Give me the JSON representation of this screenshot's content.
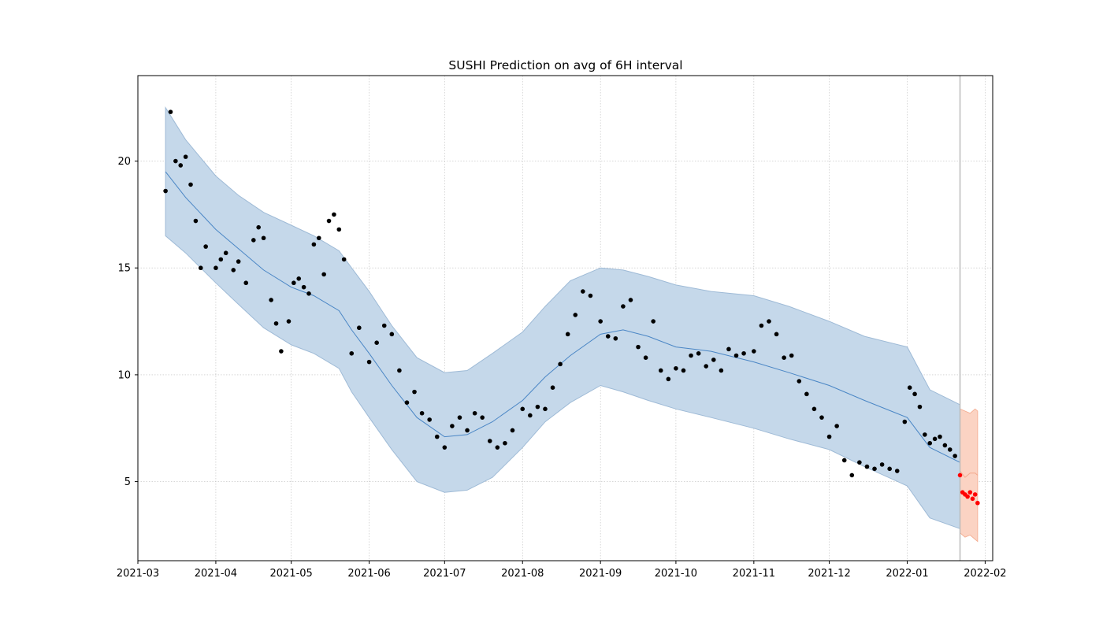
{
  "chart_data": {
    "type": "line",
    "title": "SUSHI Prediction on avg of 6H interval",
    "xlabel": "",
    "ylabel": "",
    "x_range": [
      "2021-03-01",
      "2022-02-04"
    ],
    "ylim": [
      1.3,
      24.0
    ],
    "grid": true,
    "legend": "none",
    "x_ticks": [
      "2021-03",
      "2021-04",
      "2021-05",
      "2021-06",
      "2021-07",
      "2021-08",
      "2021-09",
      "2021-10",
      "2021-11",
      "2021-12",
      "2022-01",
      "2022-02"
    ],
    "x_tick_dates": [
      "2021-03-01",
      "2021-04-01",
      "2021-05-01",
      "2021-06-01",
      "2021-07-01",
      "2021-08-01",
      "2021-09-01",
      "2021-10-01",
      "2021-11-01",
      "2021-12-01",
      "2022-01-01",
      "2022-02-01"
    ],
    "y_ticks": [
      5,
      10,
      15,
      20
    ],
    "cutoff_date": "2022-01-22",
    "colors": {
      "forecast_line": "#4a86c5",
      "interval_fill": "#c5d8ea",
      "interval_edge": "#9ebad6",
      "observed": "#000000",
      "future_line": "#f4a98c",
      "future_fill": "#fbd3c3",
      "actual_future": "#ff0000",
      "cutoff": "#bbbbbb",
      "grid": "#bdbdbd"
    },
    "series": [
      {
        "role": "forecast",
        "x": [
          "2021-03-12",
          "2021-03-20",
          "2021-04-01",
          "2021-04-10",
          "2021-04-20",
          "2021-05-01",
          "2021-05-10",
          "2021-05-20",
          "2021-05-25",
          "2021-06-01",
          "2021-06-10",
          "2021-06-20",
          "2021-07-01",
          "2021-07-10",
          "2021-07-20",
          "2021-08-01",
          "2021-08-10",
          "2021-08-20",
          "2021-09-01",
          "2021-09-10",
          "2021-09-20",
          "2021-10-01",
          "2021-10-15",
          "2021-11-01",
          "2021-11-15",
          "2021-12-01",
          "2021-12-15",
          "2022-01-01",
          "2022-01-10",
          "2022-01-22"
        ],
        "yhat": [
          19.5,
          18.3,
          16.8,
          15.9,
          14.9,
          14.1,
          13.7,
          13.0,
          12.1,
          11.0,
          9.5,
          8.0,
          7.1,
          7.2,
          7.8,
          8.8,
          9.9,
          10.9,
          11.9,
          12.1,
          11.8,
          11.3,
          11.1,
          10.6,
          10.1,
          9.5,
          8.8,
          8.0,
          6.6,
          5.9
        ],
        "yhat_lower": [
          16.5,
          15.7,
          14.3,
          13.3,
          12.2,
          11.4,
          11.0,
          10.3,
          9.2,
          8.0,
          6.5,
          5.0,
          4.5,
          4.6,
          5.2,
          6.6,
          7.8,
          8.7,
          9.5,
          9.2,
          8.8,
          8.4,
          8.0,
          7.5,
          7.0,
          6.5,
          5.7,
          4.8,
          3.3,
          2.8
        ],
        "yhat_upper": [
          22.5,
          21.0,
          19.3,
          18.4,
          17.6,
          17.0,
          16.5,
          15.8,
          15.0,
          13.9,
          12.3,
          10.8,
          10.1,
          10.2,
          11.0,
          12.0,
          13.2,
          14.4,
          15.0,
          14.9,
          14.6,
          14.2,
          13.9,
          13.7,
          13.2,
          12.5,
          11.8,
          11.3,
          9.3,
          8.6
        ]
      },
      {
        "role": "observed",
        "x": [
          "2021-03-12",
          "2021-03-14",
          "2021-03-16",
          "2021-03-18",
          "2021-03-20",
          "2021-03-22",
          "2021-03-24",
          "2021-03-26",
          "2021-03-28",
          "2021-04-01",
          "2021-04-03",
          "2021-04-05",
          "2021-04-08",
          "2021-04-10",
          "2021-04-13",
          "2021-04-16",
          "2021-04-18",
          "2021-04-20",
          "2021-04-23",
          "2021-04-25",
          "2021-04-27",
          "2021-04-30",
          "2021-05-02",
          "2021-05-04",
          "2021-05-06",
          "2021-05-08",
          "2021-05-10",
          "2021-05-12",
          "2021-05-14",
          "2021-05-16",
          "2021-05-18",
          "2021-05-20",
          "2021-05-22",
          "2021-05-25",
          "2021-05-28",
          "2021-06-01",
          "2021-06-04",
          "2021-06-07",
          "2021-06-10",
          "2021-06-13",
          "2021-06-16",
          "2021-06-19",
          "2021-06-22",
          "2021-06-25",
          "2021-06-28",
          "2021-07-01",
          "2021-07-04",
          "2021-07-07",
          "2021-07-10",
          "2021-07-13",
          "2021-07-16",
          "2021-07-19",
          "2021-07-22",
          "2021-07-25",
          "2021-07-28",
          "2021-08-01",
          "2021-08-04",
          "2021-08-07",
          "2021-08-10",
          "2021-08-13",
          "2021-08-16",
          "2021-08-19",
          "2021-08-22",
          "2021-08-25",
          "2021-08-28",
          "2021-09-01",
          "2021-09-04",
          "2021-09-07",
          "2021-09-10",
          "2021-09-13",
          "2021-09-16",
          "2021-09-19",
          "2021-09-22",
          "2021-09-25",
          "2021-09-28",
          "2021-10-01",
          "2021-10-04",
          "2021-10-07",
          "2021-10-10",
          "2021-10-13",
          "2021-10-16",
          "2021-10-19",
          "2021-10-22",
          "2021-10-25",
          "2021-10-28",
          "2021-11-01",
          "2021-11-04",
          "2021-11-07",
          "2021-11-10",
          "2021-11-13",
          "2021-11-16",
          "2021-11-19",
          "2021-11-22",
          "2021-11-25",
          "2021-11-28",
          "2021-12-01",
          "2021-12-04",
          "2021-12-07",
          "2021-12-10",
          "2021-12-13",
          "2021-12-16",
          "2021-12-19",
          "2021-12-22",
          "2021-12-25",
          "2021-12-28",
          "2021-12-31",
          "2022-01-02",
          "2022-01-04",
          "2022-01-06",
          "2022-01-08",
          "2022-01-10",
          "2022-01-12",
          "2022-01-14",
          "2022-01-16",
          "2022-01-18",
          "2022-01-20"
        ],
        "y": [
          18.6,
          22.3,
          20.0,
          19.8,
          20.2,
          18.9,
          17.2,
          15.0,
          16.0,
          15.0,
          15.4,
          15.7,
          14.9,
          15.3,
          14.3,
          16.3,
          16.9,
          16.4,
          13.5,
          12.4,
          11.1,
          12.5,
          14.3,
          14.5,
          14.1,
          13.8,
          16.1,
          16.4,
          14.7,
          17.2,
          17.5,
          16.8,
          15.4,
          11.0,
          12.2,
          10.6,
          11.5,
          12.3,
          11.9,
          10.2,
          8.7,
          9.2,
          8.2,
          7.9,
          7.1,
          6.6,
          7.6,
          8.0,
          7.4,
          8.2,
          8.0,
          6.9,
          6.6,
          6.8,
          7.4,
          8.4,
          8.1,
          8.5,
          8.4,
          9.4,
          10.5,
          11.9,
          12.8,
          13.9,
          13.7,
          12.5,
          11.8,
          11.7,
          13.2,
          13.5,
          11.3,
          10.8,
          12.5,
          10.2,
          9.8,
          10.3,
          10.2,
          10.9,
          11.0,
          10.4,
          10.7,
          10.2,
          11.2,
          10.9,
          11.0,
          11.1,
          12.3,
          12.5,
          11.9,
          10.8,
          10.9,
          9.7,
          9.1,
          8.4,
          8.0,
          7.1,
          7.6,
          6.0,
          5.3,
          5.9,
          5.7,
          5.6,
          5.8,
          5.6,
          5.5,
          7.8,
          9.4,
          9.1,
          8.5,
          7.2,
          6.8,
          7.0,
          7.1,
          6.7,
          6.5,
          6.2
        ]
      },
      {
        "role": "actual_future",
        "x": [
          "2022-01-22",
          "2022-01-23",
          "2022-01-24",
          "2022-01-25",
          "2022-01-26",
          "2022-01-27",
          "2022-01-28",
          "2022-01-29"
        ],
        "y": [
          5.3,
          4.5,
          4.4,
          4.3,
          4.5,
          4.2,
          4.4,
          4.0
        ]
      },
      {
        "role": "future_forecast",
        "x": [
          "2022-01-22",
          "2022-01-24",
          "2022-01-26",
          "2022-01-28",
          "2022-01-29"
        ],
        "yhat": [
          5.5,
          5.2,
          5.4,
          5.4,
          5.3
        ],
        "yhat_lower": [
          2.6,
          2.4,
          2.5,
          2.3,
          2.2
        ],
        "yhat_upper": [
          8.4,
          8.3,
          8.2,
          8.4,
          8.3
        ]
      }
    ]
  }
}
